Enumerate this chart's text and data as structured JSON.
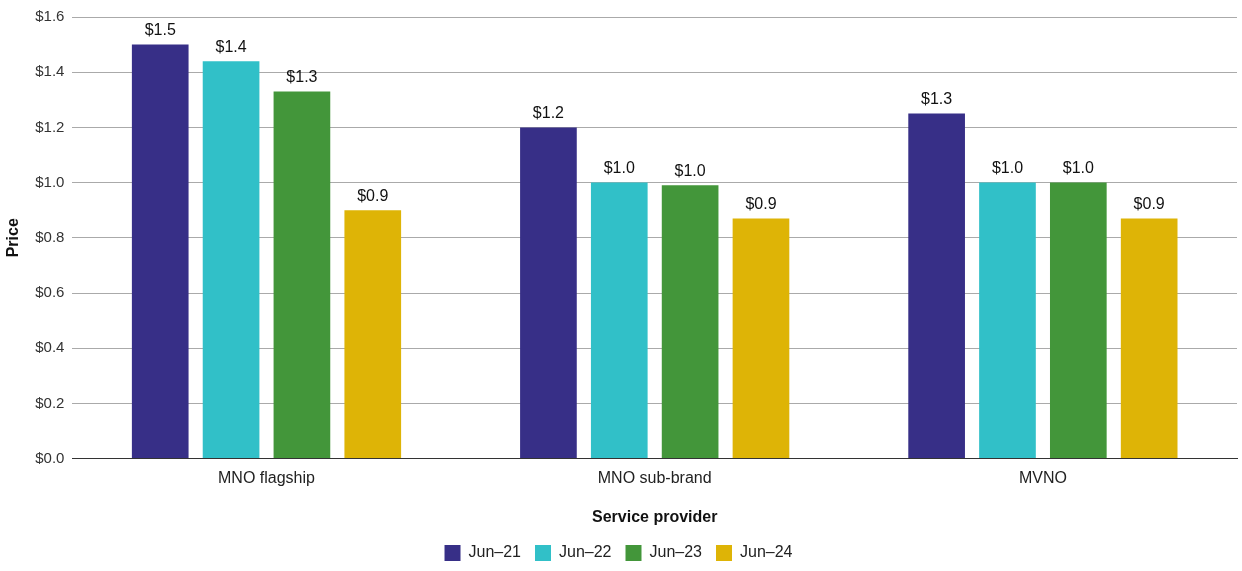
{
  "chart_data": {
    "type": "bar",
    "xlabel": "Service provider",
    "ylabel": "Price",
    "categories": [
      "MNO flagship",
      "MNO sub-brand",
      "MVNO"
    ],
    "series": [
      {
        "name": "Jun–21",
        "color": "#372f87",
        "values": [
          1.5,
          1.2,
          1.25
        ],
        "value_labels": [
          "$1.5",
          "$1.2",
          "$1.3"
        ]
      },
      {
        "name": "Jun–22",
        "color": "#31c0c8",
        "values": [
          1.44,
          1.0,
          1.0
        ],
        "value_labels": [
          "$1.4",
          "$1.0",
          "$1.0"
        ]
      },
      {
        "name": "Jun–23",
        "color": "#43963a",
        "values": [
          1.33,
          0.99,
          1.0
        ],
        "value_labels": [
          "$1.3",
          "$1.0",
          "$1.0"
        ]
      },
      {
        "name": "Jun–24",
        "color": "#deb406",
        "values": [
          0.9,
          0.87,
          0.87
        ],
        "value_labels": [
          "$0.9",
          "$0.9",
          "$0.9"
        ]
      }
    ],
    "ylim": [
      0,
      1.6
    ],
    "yticks": [
      {
        "value": 0,
        "label": "$0.0"
      },
      {
        "value": 0.2,
        "label": "$0.2"
      },
      {
        "value": 0.4,
        "label": "$0.4"
      },
      {
        "value": 0.6,
        "label": "$0.6"
      },
      {
        "value": 0.8,
        "label": "$0.8"
      },
      {
        "value": 1.0,
        "label": "$1.0"
      },
      {
        "value": 1.2,
        "label": "$1.2"
      },
      {
        "value": 1.4,
        "label": "$1.4"
      },
      {
        "value": 1.6,
        "label": "$1.6"
      }
    ],
    "grid": "y",
    "legend": "bottom"
  }
}
